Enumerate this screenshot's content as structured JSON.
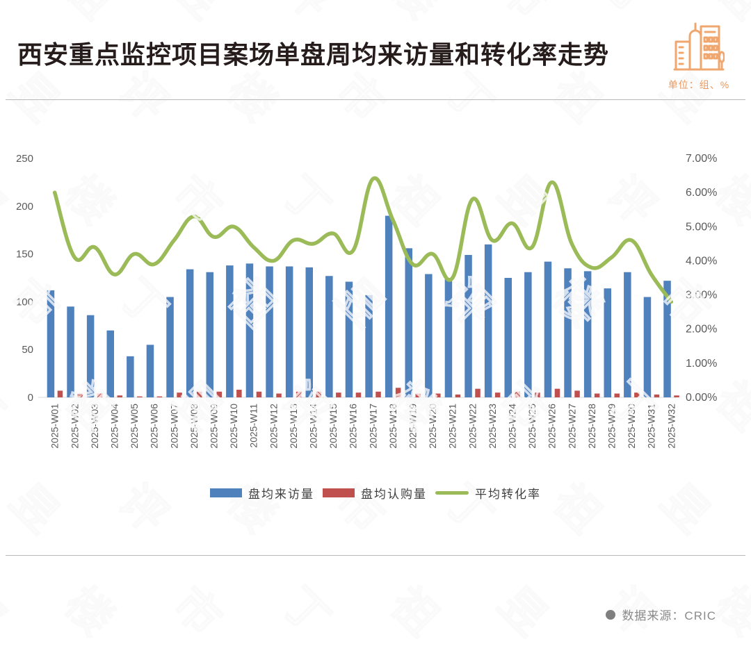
{
  "header": {
    "title": "西安重点监控项目案场单盘周均来访量和转化率走势",
    "unit_label": "单位：组、%",
    "title_color": "#261c1c",
    "brand_color": "#efa76f"
  },
  "watermark": {
    "text": "丁祖昱评楼市"
  },
  "footer": {
    "source_label": "数据来源：CRIC"
  },
  "chart_data": {
    "type": "bar",
    "title": "西安重点监控项目案场单盘周均来访量和转化率走势",
    "categories": [
      "2025-W01",
      "2025-W02",
      "2025-W03",
      "2025-W04",
      "2025-W05",
      "2025-W06",
      "2025-W07",
      "2025-W08",
      "2025-W09",
      "2025-W10",
      "2025-W11",
      "2025-W12",
      "2025-W13",
      "2025-W14",
      "2025-W15",
      "2025-W16",
      "2025-W17",
      "2025-W18",
      "2025-W19",
      "2025-W20",
      "2025-W21",
      "2025-W22",
      "2025-W23",
      "2025-W24",
      "2025-W25",
      "2025-W26",
      "2025-W27",
      "2025-W28",
      "2025-W29",
      "2025-W30",
      "2025-W31",
      "2025-W32"
    ],
    "series": [
      {
        "name": "盘均来访量",
        "type": "bar",
        "axis": "left",
        "color": "#4F81BD",
        "values": [
          112,
          95,
          86,
          70,
          43,
          55,
          105,
          134,
          131,
          138,
          140,
          137,
          137,
          136,
          127,
          121,
          107,
          190,
          156,
          129,
          125,
          149,
          160,
          125,
          131,
          142,
          135,
          132,
          114,
          131,
          105,
          122
        ]
      },
      {
        "name": "盘均认购量",
        "type": "bar",
        "axis": "left",
        "color": "#C0504D",
        "values": [
          7,
          4,
          4,
          2,
          1,
          1,
          5,
          6,
          6,
          8,
          6,
          4,
          6,
          6,
          5,
          5,
          6,
          10,
          4,
          4,
          3,
          9,
          5,
          6,
          5,
          9,
          7,
          4,
          4,
          5,
          3,
          2
        ]
      },
      {
        "name": "平均转化率",
        "type": "line",
        "axis": "right",
        "color": "#9BBB59",
        "values": [
          6.0,
          4.1,
          4.4,
          3.6,
          4.2,
          3.9,
          4.6,
          5.3,
          4.7,
          5.0,
          4.4,
          4.0,
          4.6,
          4.5,
          4.8,
          4.3,
          6.4,
          5.2,
          3.9,
          4.2,
          3.5,
          5.8,
          4.6,
          5.1,
          4.4,
          6.3,
          4.5,
          3.8,
          4.1,
          4.6,
          3.6,
          2.8
        ]
      }
    ],
    "axes": {
      "left": {
        "min": 0,
        "max": 250,
        "ticks": [
          "0",
          "50",
          "100",
          "150",
          "200",
          "250"
        ]
      },
      "right": {
        "min": 0,
        "max": 7,
        "ticks": [
          "0.00%",
          "1.00%",
          "2.00%",
          "3.00%",
          "4.00%",
          "5.00%",
          "6.00%",
          "7.00%"
        ]
      }
    },
    "grid": false,
    "legend_position": "bottom"
  }
}
